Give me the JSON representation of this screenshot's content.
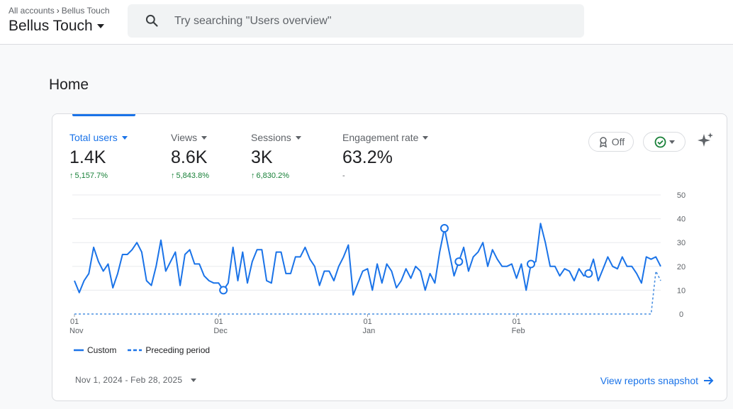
{
  "header": {
    "breadcrumb": {
      "root": "All accounts",
      "property": "Bellus Touch"
    },
    "property_title": "Bellus Touch",
    "search_placeholder": "Try searching \"Users overview\""
  },
  "page": {
    "title": "Home"
  },
  "metrics": [
    {
      "label": "Total users",
      "value": "1.4K",
      "change": "5,157.7%"
    },
    {
      "label": "Views",
      "value": "8.6K",
      "change": "5,843.8%"
    },
    {
      "label": "Sessions",
      "value": "3K",
      "change": "6,830.2%"
    },
    {
      "label": "Engagement rate",
      "value": "63.2%",
      "change": "-"
    }
  ],
  "toolbar": {
    "annotations_toggle": "Off"
  },
  "chart_data": {
    "type": "line",
    "y_ticks": [
      "50",
      "40",
      "30",
      "20",
      "10",
      "0"
    ],
    "ylim": [
      0,
      50
    ],
    "x_ticks": [
      {
        "day": "01",
        "month": "Nov",
        "index": 0
      },
      {
        "day": "01",
        "month": "Dec",
        "index": 30
      },
      {
        "day": "01",
        "month": "Jan",
        "index": 61
      },
      {
        "day": "01",
        "month": "Feb",
        "index": 92
      }
    ],
    "series": [
      {
        "name": "Custom",
        "color": "#1a73e8",
        "style": "solid",
        "values": [
          14,
          9,
          14,
          17,
          28,
          22,
          18,
          21,
          11,
          17,
          25,
          25,
          27,
          30,
          26,
          14,
          12,
          20,
          31,
          18,
          22,
          26,
          12,
          25,
          27,
          21,
          21,
          16,
          14,
          13,
          13,
          10,
          13,
          28,
          14,
          26,
          13,
          22,
          27,
          27,
          14,
          13,
          26,
          26,
          17,
          17,
          24,
          24,
          28,
          23,
          20,
          12,
          18,
          18,
          14,
          20,
          24,
          29,
          8,
          13,
          18,
          19,
          10,
          21,
          13,
          21,
          18,
          11,
          14,
          19,
          15,
          20,
          18,
          10,
          17,
          13,
          26,
          36,
          26,
          16,
          22,
          28,
          18,
          24,
          26,
          30,
          20,
          27,
          23,
          20,
          20,
          21,
          15,
          21,
          10,
          21,
          22,
          38,
          30,
          20,
          20,
          16,
          19,
          18,
          14,
          19,
          16,
          17,
          23,
          14,
          19,
          24,
          20,
          19,
          24,
          20,
          20,
          17,
          13,
          24,
          23,
          24,
          20
        ],
        "markers": [
          31,
          77,
          80,
          95,
          107
        ]
      },
      {
        "name": "Preceding period",
        "color": "#4a90e2",
        "style": "dashed",
        "values_note": "flat at 0 until the last days",
        "values_tail": [
          0,
          18,
          14
        ]
      }
    ]
  },
  "footer": {
    "date_range": "Nov 1, 2024 - Feb 28, 2025",
    "snapshot_link": "View reports snapshot"
  }
}
